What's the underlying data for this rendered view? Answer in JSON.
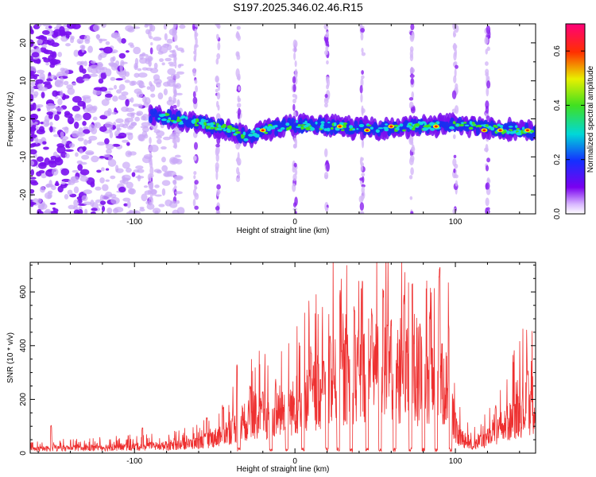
{
  "title": "S197.2025.346.02.46.R15",
  "chart_data": [
    {
      "type": "heatmap",
      "xlabel": "Height of straight line (km)",
      "ylabel": "Frequency (Hz)",
      "xlim": [
        -165,
        150
      ],
      "ylim": [
        -25,
        25
      ],
      "xticks": [
        -100,
        0,
        100
      ],
      "xtick_labels": [
        "-100",
        "0",
        "100"
      ],
      "yticks": [
        -20,
        -10,
        0,
        10,
        20
      ],
      "ytick_labels": [
        "-20",
        "-10",
        "0",
        "10",
        "20"
      ],
      "colorbar": {
        "label": "Normalized spectral amplitude",
        "range": [
          0,
          0.7
        ],
        "ticks": [
          0,
          0.2,
          0.4,
          0.6
        ],
        "tick_labels": [
          "0.0",
          "0.2",
          "0.4",
          "0.6"
        ]
      },
      "signal_band": {
        "start_height_km": -90,
        "ridge_frequency_hz": [
          [
            -90,
            1
          ],
          [
            -60,
            -1
          ],
          [
            -40,
            -3
          ],
          [
            -30,
            -5
          ],
          [
            -20,
            -3
          ],
          [
            0,
            -1.5
          ],
          [
            50,
            -2.5
          ],
          [
            100,
            -1.5
          ],
          [
            150,
            -3.5
          ]
        ],
        "strong_peaks": [
          [
            -20,
            -3
          ],
          [
            28,
            -2
          ],
          [
            45,
            -3
          ],
          [
            60,
            -2
          ],
          [
            88,
            -2
          ],
          [
            118,
            -3
          ],
          [
            128,
            -3
          ],
          [
            145,
            -3
          ]
        ]
      },
      "vertical_streaks_km": [
        -90,
        -75,
        -62,
        -48,
        -35,
        0,
        20,
        42,
        73,
        100,
        120
      ],
      "noise_region_km": [
        -165,
        -95
      ]
    },
    {
      "type": "line",
      "xlabel": "Height of straight line (km)",
      "ylabel": "SNR (10 * v/v)",
      "xlim": [
        -165,
        150
      ],
      "ylim": [
        0,
        710
      ],
      "xticks": [
        -100,
        0,
        100
      ],
      "xtick_labels": [
        "-100",
        "0",
        "100"
      ],
      "yticks": [
        0,
        200,
        400,
        600
      ],
      "ytick_labels": [
        "0",
        "200",
        "400",
        "600"
      ],
      "series": [
        {
          "name": "SNR",
          "color": "#ee3030",
          "envelope": [
            [
              -165,
              15
            ],
            [
              -140,
              20
            ],
            [
              -100,
              25
            ],
            [
              -80,
              28
            ],
            [
              -60,
              40
            ],
            [
              -50,
              60
            ],
            [
              -40,
              90
            ],
            [
              -35,
              110
            ],
            [
              -25,
              140
            ],
            [
              -15,
              130
            ],
            [
              -5,
              170
            ],
            [
              0,
              180
            ],
            [
              10,
              220
            ],
            [
              20,
              260
            ],
            [
              30,
              290
            ],
            [
              40,
              300
            ],
            [
              50,
              320
            ],
            [
              60,
              310
            ],
            [
              70,
              300
            ],
            [
              80,
              280
            ],
            [
              90,
              270
            ],
            [
              97,
              250
            ],
            [
              100,
              80
            ],
            [
              110,
              30
            ],
            [
              120,
              60
            ],
            [
              130,
              100
            ],
            [
              140,
              160
            ],
            [
              150,
              200
            ]
          ],
          "spikes": [
            [
              -152,
              105
            ],
            [
              -95,
              95
            ],
            [
              -55,
              140
            ],
            [
              -45,
              180
            ],
            [
              -36,
              340
            ],
            [
              -28,
              260
            ],
            [
              -20,
              230
            ],
            [
              -12,
              280
            ],
            [
              -5,
              230
            ],
            [
              10,
              400
            ],
            [
              18,
              350
            ],
            [
              22,
              450
            ],
            [
              28,
              620
            ],
            [
              37,
              560
            ],
            [
              42,
              650
            ],
            [
              48,
              540
            ],
            [
              55,
              640
            ],
            [
              60,
              500
            ],
            [
              68,
              600
            ],
            [
              73,
              660
            ],
            [
              78,
              490
            ],
            [
              84,
              550
            ],
            [
              90,
              720
            ],
            [
              96,
              480
            ],
            [
              125,
              180
            ],
            [
              145,
              320
            ]
          ],
          "dropouts_km": [
            -35,
            -15,
            -5,
            5,
            20,
            27,
            35,
            45,
            53,
            62,
            72,
            80,
            88,
            97
          ]
        }
      ]
    }
  ]
}
